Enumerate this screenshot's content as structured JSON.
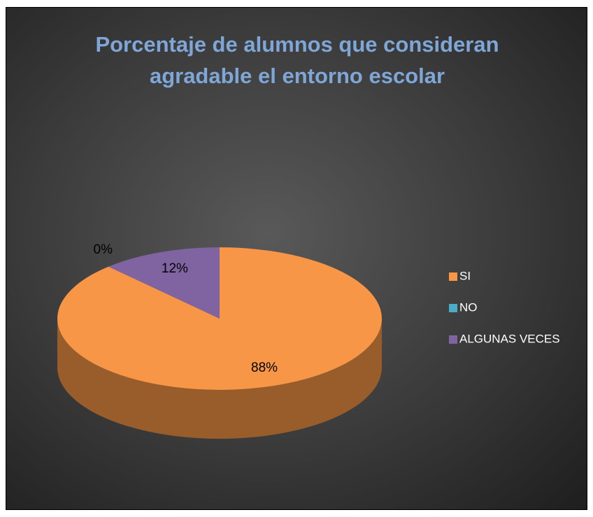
{
  "chart_data": {
    "type": "pie",
    "title": "Porcentaje de alumnos que consideran agradable el entorno escolar",
    "categories": [
      "SI",
      "NO",
      "ALGUNAS VECES"
    ],
    "values": [
      88,
      0,
      12
    ],
    "value_labels": [
      "88%",
      "0%",
      "12%"
    ],
    "colors": [
      "#f79646",
      "#4bacc6",
      "#8064a2"
    ],
    "legend": "right"
  }
}
